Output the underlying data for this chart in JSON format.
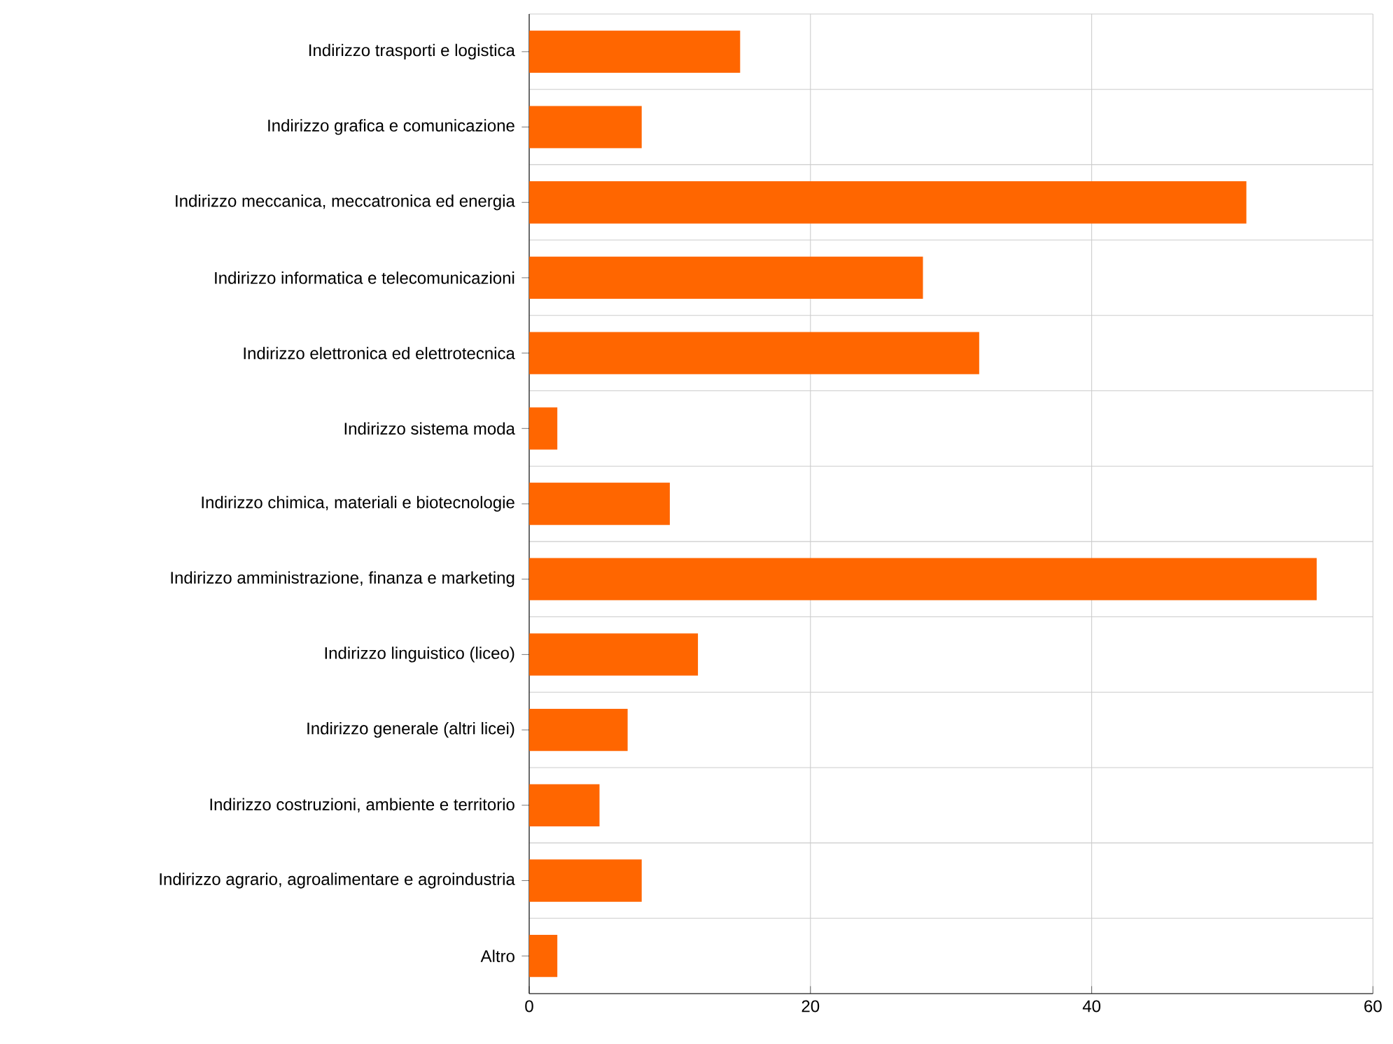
{
  "chart_data": {
    "type": "bar",
    "orientation": "horizontal",
    "categories": [
      "Indirizzo trasporti e logistica",
      "Indirizzo grafica e comunicazione",
      "Indirizzo meccanica, meccatronica ed energia",
      "Indirizzo informatica e telecomunicazioni",
      "Indirizzo elettronica ed elettrotecnica",
      "Indirizzo sistema moda",
      "Indirizzo chimica, materiali e biotecnologie",
      "Indirizzo amministrazione, finanza e marketing",
      "Indirizzo linguistico (liceo)",
      "Indirizzo generale (altri licei)",
      "Indirizzo costruzioni, ambiente e territorio",
      "Indirizzo agrario, agroalimentare e agroindustria",
      "Altro"
    ],
    "values": [
      15,
      8,
      51,
      28,
      32,
      2,
      10,
      56,
      12,
      7,
      5,
      8,
      2
    ],
    "color": "#ff6600",
    "xlim": [
      0,
      60
    ],
    "xticks": [
      0,
      20,
      40,
      60
    ],
    "grid": true
  }
}
